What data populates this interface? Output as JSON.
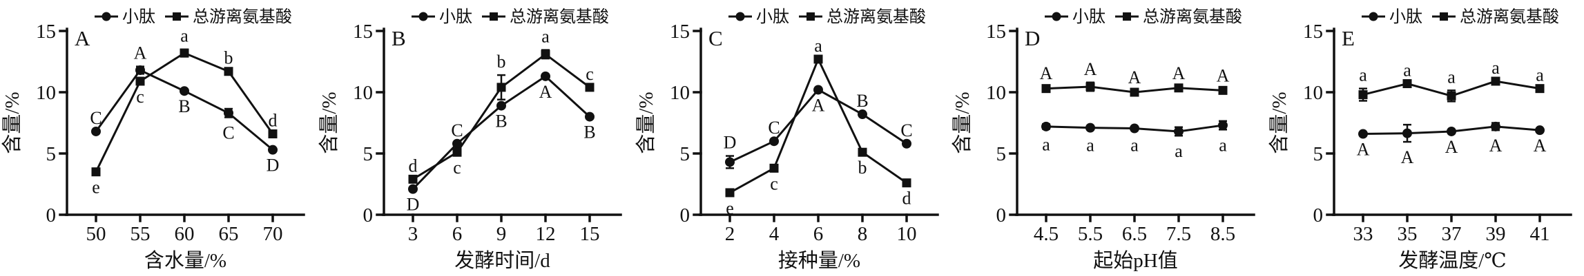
{
  "figure": {
    "background": "#ffffff",
    "ink_color": "#111111",
    "ylabel": "含量/%",
    "legend": [
      {
        "label": "小肽",
        "marker": "circle"
      },
      {
        "label": "总游离氨基酸",
        "marker": "square"
      }
    ]
  },
  "chart_data": [
    {
      "type": "line",
      "panel": "A",
      "xlabel": "含水量/%",
      "ylabel": "含量/%",
      "x_ticks": [
        "50",
        "55",
        "60",
        "65",
        "70"
      ],
      "y_ticks": [
        0,
        5,
        10,
        15
      ],
      "ylim": [
        0,
        15
      ],
      "grid": false,
      "legend_position": "top",
      "series": [
        {
          "name": "小肽",
          "marker": "circle",
          "values": [
            6.8,
            11.8,
            10.1,
            8.3,
            5.3
          ],
          "err": [
            0,
            0.3,
            0,
            0.35,
            0
          ],
          "point_labels": [
            "C",
            "A",
            "B",
            "C",
            "D"
          ],
          "label_side": [
            "above",
            "above",
            "below",
            "below",
            "below"
          ]
        },
        {
          "name": "总游离氨基酸",
          "marker": "square",
          "values": [
            3.5,
            10.9,
            13.2,
            11.7,
            6.6
          ],
          "err": [
            0,
            0,
            0.3,
            0,
            0
          ],
          "point_labels": [
            "e",
            "c",
            "a",
            "b",
            "d"
          ],
          "label_side": [
            "below",
            "below",
            "above",
            "above",
            "above"
          ]
        }
      ]
    },
    {
      "type": "line",
      "panel": "B",
      "xlabel": "发酵时间/d",
      "ylabel": "含量/%",
      "x_ticks": [
        "3",
        "6",
        "9",
        "12",
        "15"
      ],
      "y_ticks": [
        0,
        5,
        10,
        15
      ],
      "ylim": [
        0,
        15
      ],
      "grid": false,
      "legend_position": "top",
      "series": [
        {
          "name": "小肽",
          "marker": "circle",
          "values": [
            2.1,
            5.8,
            8.9,
            11.3,
            8.0
          ],
          "err": [
            0,
            0,
            0,
            0,
            0
          ],
          "point_labels": [
            "D",
            "C",
            "B",
            "A",
            "B"
          ],
          "label_side": [
            "below",
            "above",
            "below",
            "below",
            "below"
          ]
        },
        {
          "name": "总游离氨基酸",
          "marker": "square",
          "values": [
            2.9,
            5.1,
            10.4,
            13.1,
            10.4
          ],
          "err": [
            0,
            0,
            1.0,
            0.35,
            0
          ],
          "point_labels": [
            "d",
            "c",
            "b",
            "a",
            "c"
          ],
          "label_side": [
            "above",
            "below",
            "above",
            "above",
            "above"
          ]
        }
      ]
    },
    {
      "type": "line",
      "panel": "C",
      "xlabel": "接种量/%",
      "ylabel": "含量/%",
      "x_ticks": [
        "2",
        "4",
        "6",
        "8",
        "10"
      ],
      "y_ticks": [
        0,
        5,
        10,
        15
      ],
      "ylim": [
        0,
        15
      ],
      "grid": false,
      "legend_position": "top",
      "series": [
        {
          "name": "小肽",
          "marker": "circle",
          "values": [
            4.3,
            6.0,
            10.2,
            8.2,
            5.8
          ],
          "err": [
            0.5,
            0,
            0,
            0,
            0
          ],
          "point_labels": [
            "D",
            "C",
            "A",
            "B",
            "C"
          ],
          "label_side": [
            "above",
            "above",
            "below",
            "above",
            "above"
          ]
        },
        {
          "name": "总游离氨基酸",
          "marker": "square",
          "values": [
            1.8,
            3.8,
            12.7,
            5.1,
            2.6
          ],
          "err": [
            0,
            0,
            0,
            0,
            0
          ],
          "point_labels": [
            "e",
            "c",
            "a",
            "b",
            "d"
          ],
          "label_side": [
            "below",
            "below",
            "above",
            "below",
            "below"
          ]
        }
      ]
    },
    {
      "type": "line",
      "panel": "D",
      "xlabel": "起始pH值",
      "ylabel": "含量/%",
      "x_ticks": [
        "4.5",
        "5.5",
        "6.5",
        "7.5",
        "8.5"
      ],
      "y_ticks": [
        0,
        5,
        10,
        15
      ],
      "ylim": [
        0,
        15
      ],
      "grid": false,
      "legend_position": "top",
      "series": [
        {
          "name": "小肽",
          "marker": "circle",
          "values": [
            7.2,
            7.1,
            7.05,
            6.8,
            7.3
          ],
          "err": [
            0.2,
            0.15,
            0.1,
            0.35,
            0.35
          ],
          "point_labels": [
            "a",
            "a",
            "a",
            "a",
            "a"
          ],
          "label_side": [
            "below",
            "below",
            "below",
            "below",
            "below"
          ]
        },
        {
          "name": "总游离氨基酸",
          "marker": "square",
          "values": [
            10.3,
            10.45,
            10.0,
            10.35,
            10.15
          ],
          "err": [
            0.15,
            0.35,
            0.1,
            0.1,
            0.1
          ],
          "point_labels": [
            "A",
            "A",
            "A",
            "A",
            "A"
          ],
          "label_side": [
            "above",
            "above",
            "above",
            "above",
            "above"
          ]
        }
      ]
    },
    {
      "type": "line",
      "panel": "E",
      "xlabel": "发酵温度/℃",
      "ylabel": "含量/%",
      "x_ticks": [
        "33",
        "35",
        "37",
        "39",
        "41"
      ],
      "y_ticks": [
        0,
        5,
        10,
        15
      ],
      "ylim": [
        0,
        15
      ],
      "grid": false,
      "legend_position": "top",
      "series": [
        {
          "name": "小肽",
          "marker": "circle",
          "values": [
            6.6,
            6.65,
            6.8,
            7.2,
            6.9
          ],
          "err": [
            0,
            0.7,
            0,
            0.3,
            0
          ],
          "point_labels": [
            "A",
            "A",
            "A",
            "A",
            "A"
          ],
          "label_side": [
            "below",
            "below",
            "below",
            "below",
            "below"
          ]
        },
        {
          "name": "总游离氨基酸",
          "marker": "square",
          "values": [
            9.8,
            10.7,
            9.7,
            10.9,
            10.3
          ],
          "err": [
            0.5,
            0,
            0.45,
            0,
            0
          ],
          "point_labels": [
            "a",
            "a",
            "a",
            "a",
            "a"
          ],
          "label_side": [
            "above",
            "above",
            "above",
            "above",
            "above"
          ]
        }
      ]
    }
  ]
}
